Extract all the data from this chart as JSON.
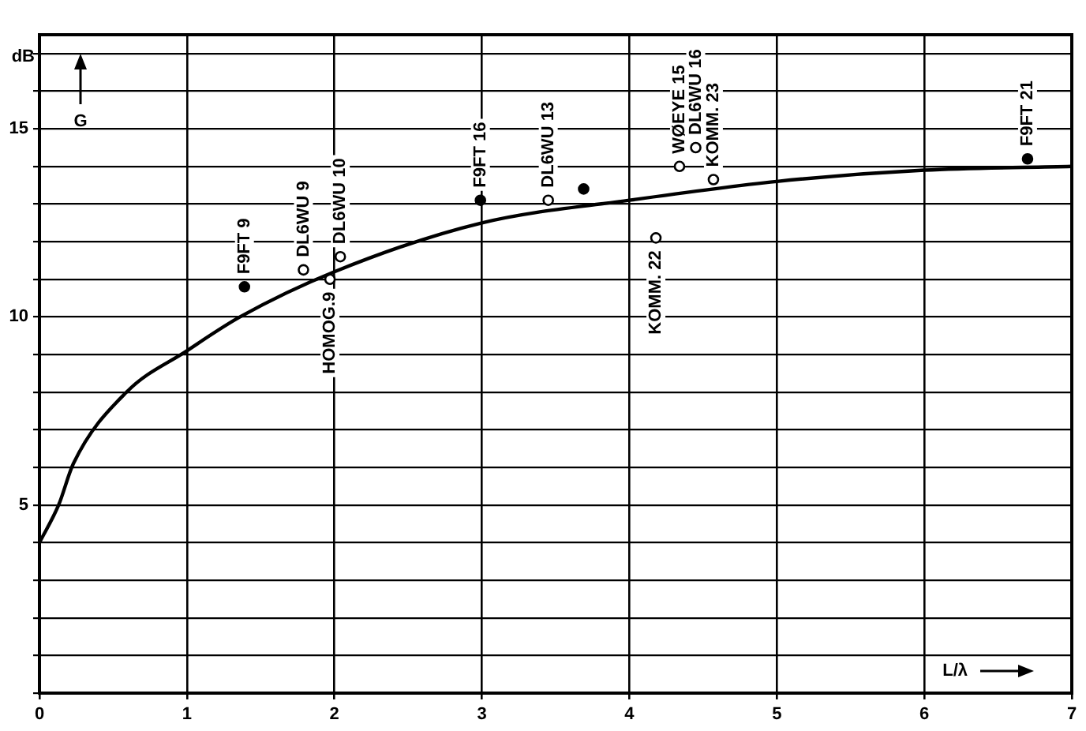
{
  "chart_data": {
    "type": "scatter",
    "ylabel": "G",
    "xlabel": "L/λ",
    "annotations": [
      "dB",
      {
        "text": "F9FT 9",
        "x": 1.39,
        "y": 10.8
      },
      {
        "text": "F9FT 16",
        "x": 2.99,
        "y": 13.1
      },
      {
        "text": "F9FT 21",
        "x": 6.7,
        "y": 14.2
      },
      {
        "text": "DL6WU 9",
        "x": 1.79,
        "y": 11.25
      },
      {
        "text": "HOMOG.9",
        "x": 1.97,
        "y": 11.0
      },
      {
        "text": "DL6WU 10",
        "x": 2.04,
        "y": 11.6
      },
      {
        "text": "DL6WU 13",
        "x": 3.45,
        "y": 13.1
      },
      {
        "text": "WØEYE 15",
        "x": 4.34,
        "y": 14.0
      },
      {
        "text": "DL6WU 16",
        "x": 4.45,
        "y": 14.5
      },
      {
        "text": "KOMM. 22",
        "x": 4.18,
        "y": 12.1
      },
      {
        "text": "KOMM. 23",
        "x": 4.57,
        "y": 13.65
      }
    ],
    "series": [
      {
        "type": "line",
        "color": "#000000",
        "marker": "none",
        "line_style": "solid",
        "x": [
          0,
          0.13,
          0.23,
          0.59,
          1,
          1.36,
          2,
          3,
          4,
          5,
          6,
          7
        ],
        "values": [
          4.0,
          5.0,
          6.1,
          8.0,
          9.1,
          10.0,
          11.2,
          12.5,
          13.1,
          13.6,
          13.9,
          14.0
        ]
      },
      {
        "type": "scatter",
        "color": "#000000",
        "marker": "circle",
        "x": [
          1.39,
          2.99,
          3.69,
          6.7
        ],
        "values": [
          10.8,
          13.1,
          13.4,
          14.2
        ]
      },
      {
        "type": "scatter",
        "color": "#000000",
        "marker": "circle",
        "x": [
          1.79,
          1.97,
          2.04,
          3.45,
          4.34,
          4.45,
          4.18,
          4.57
        ],
        "values": [
          11.25,
          11.0,
          11.6,
          13.1,
          14.0,
          14.5,
          12.1,
          13.65
        ]
      }
    ],
    "xlim": [
      0,
      7
    ],
    "xticks": [
      0,
      1,
      2,
      3,
      4,
      5,
      6,
      7
    ],
    "ylim": [
      0,
      17.5
    ],
    "yticks": [
      {
        "value": 0,
        "label": null
      },
      {
        "value": 1,
        "label": null
      },
      {
        "value": 2,
        "label": null
      },
      {
        "value": 3,
        "label": null
      },
      {
        "value": 4,
        "label": null
      },
      5,
      {
        "value": 6,
        "label": null
      },
      {
        "value": 7,
        "label": null
      },
      {
        "value": 8,
        "label": null
      },
      {
        "value": 9,
        "label": null
      },
      10,
      {
        "value": 11,
        "label": null
      },
      {
        "value": 12,
        "label": null
      },
      {
        "value": 13,
        "label": null
      },
      {
        "value": 14,
        "label": null
      },
      15,
      {
        "value": 16,
        "label": null
      },
      {
        "value": 17,
        "label": null
      }
    ],
    "grid": true,
    "legend": false
  }
}
